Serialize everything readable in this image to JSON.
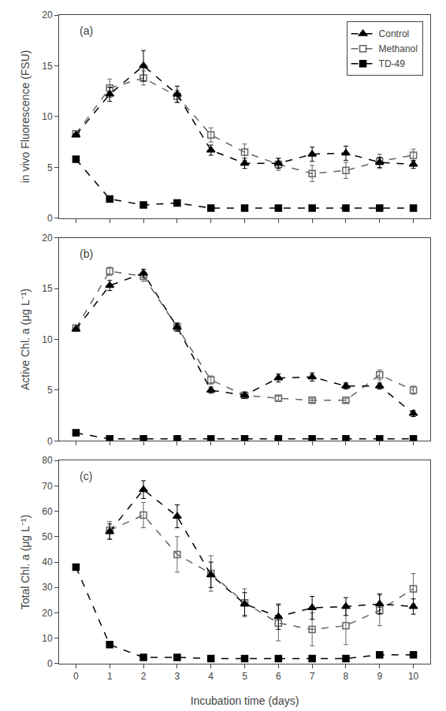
{
  "chart_data": [
    {
      "type": "line",
      "title": "(a)",
      "ylabel": "in vivo Fluorescence (FSU)",
      "x": [
        0,
        1,
        2,
        3,
        4,
        5,
        6,
        7,
        8,
        9,
        10
      ],
      "xlim": [
        -0.5,
        10.5
      ],
      "xticks": [
        0,
        1,
        2,
        3,
        4,
        5,
        6,
        7,
        8,
        9,
        10
      ],
      "ylim": [
        0,
        20
      ],
      "yticks": [
        0,
        5,
        10,
        15,
        20
      ],
      "grid": false,
      "legend": "upper right",
      "tick_labels": "y",
      "series": [
        {
          "name": "Control",
          "color": "black",
          "marker": "triangle",
          "line_style": "dashed",
          "values": [
            8.2,
            12.2,
            15.0,
            12.2,
            6.7,
            5.4,
            5.4,
            6.3,
            6.4,
            5.5,
            5.3
          ],
          "errors": [
            0.0,
            0.7,
            1.5,
            0.8,
            0.5,
            0.5,
            0.5,
            0.7,
            0.7,
            0.5,
            0.4
          ]
        },
        {
          "name": "Methanol",
          "color": "#666666",
          "marker": "square-open",
          "line_style": "dashed",
          "values": [
            8.3,
            12.8,
            13.8,
            12.0,
            8.2,
            6.5,
            5.3,
            4.4,
            4.7,
            5.6,
            6.2
          ],
          "errors": [
            0.0,
            0.9,
            0.7,
            0.6,
            0.7,
            0.8,
            0.6,
            0.8,
            0.8,
            0.7,
            0.6
          ]
        },
        {
          "name": "TD-49",
          "color": "black",
          "marker": "square",
          "line_style": "dashed",
          "values": [
            5.8,
            1.9,
            1.3,
            1.5,
            1.0,
            1.0,
            1.0,
            1.0,
            1.0,
            1.0,
            1.0
          ],
          "errors": [
            0.0,
            0.2,
            0.1,
            0.1,
            0.1,
            0.1,
            0.1,
            0.1,
            0.1,
            0.1,
            0.1
          ]
        }
      ]
    },
    {
      "type": "line",
      "title": "(b)",
      "ylabel": "Active Chl. a (μg L⁻¹)",
      "x": [
        0,
        1,
        2,
        3,
        4,
        5,
        6,
        7,
        8,
        9,
        10
      ],
      "xlim": [
        -0.5,
        10.5
      ],
      "xticks": [
        0,
        1,
        2,
        3,
        4,
        5,
        6,
        7,
        8,
        9,
        10
      ],
      "ylim": [
        0,
        20
      ],
      "yticks": [
        0,
        5,
        10,
        15,
        20
      ],
      "grid": false,
      "tick_labels": "y",
      "series": [
        {
          "name": "Control",
          "color": "black",
          "marker": "triangle",
          "line_style": "dashed",
          "values": [
            11.0,
            15.3,
            16.5,
            11.2,
            5.0,
            4.5,
            6.2,
            6.3,
            5.4,
            5.4,
            2.7
          ],
          "errors": [
            0.0,
            0.5,
            0.4,
            0.4,
            0.3,
            0.3,
            0.4,
            0.4,
            0.3,
            0.3,
            0.3
          ]
        },
        {
          "name": "Methanol",
          "color": "#666666",
          "marker": "square-open",
          "line_style": "dashed",
          "values": [
            11.1,
            16.7,
            16.2,
            11.2,
            6.0,
            4.5,
            4.2,
            4.0,
            4.0,
            6.5,
            5.0
          ],
          "errors": [
            0.0,
            0.4,
            0.5,
            0.4,
            0.4,
            0.3,
            0.2,
            0.2,
            0.2,
            0.5,
            0.4
          ]
        },
        {
          "name": "TD-49",
          "color": "black",
          "marker": "square",
          "line_style": "dashed",
          "values": [
            0.8,
            0.2,
            0.2,
            0.2,
            0.2,
            0.2,
            0.2,
            0.2,
            0.2,
            0.2,
            0.2
          ],
          "errors": [
            0.1,
            0.05,
            0.05,
            0.05,
            0.05,
            0.05,
            0.05,
            0.05,
            0.05,
            0.05,
            0.05
          ]
        }
      ]
    },
    {
      "type": "line",
      "title": "(c)",
      "ylabel": "Total Chl. a (μg L⁻¹)",
      "xlabel": "Incubation time (days)",
      "x": [
        0,
        1,
        2,
        3,
        4,
        5,
        6,
        7,
        8,
        9,
        10
      ],
      "xlim": [
        -0.5,
        10.5
      ],
      "xticks": [
        0,
        1,
        2,
        3,
        4,
        5,
        6,
        7,
        8,
        9,
        10
      ],
      "ylim": [
        0,
        80
      ],
      "yticks": [
        0,
        10,
        20,
        30,
        40,
        50,
        60,
        70,
        80
      ],
      "grid": false,
      "series": [
        {
          "name": "Control",
          "color": "black",
          "marker": "triangle",
          "line_style": "dashed",
          "values": [
            null,
            52.0,
            68.5,
            58.0,
            35.0,
            23.5,
            18.5,
            22.0,
            22.5,
            23.5,
            22.5
          ],
          "errors": [
            null,
            3.0,
            3.5,
            4.5,
            5.0,
            4.5,
            5.0,
            4.5,
            3.5,
            4.0,
            3.0
          ]
        },
        {
          "name": "Methanol",
          "color": "#666666",
          "marker": "square-open",
          "line_style": "dashed",
          "values": [
            null,
            52.5,
            58.5,
            43.0,
            35.5,
            24.0,
            16.0,
            13.5,
            15.0,
            21.0,
            29.5
          ],
          "errors": [
            null,
            3.5,
            5.0,
            7.0,
            7.0,
            5.5,
            7.0,
            6.5,
            7.5,
            6.0,
            6.0
          ]
        },
        {
          "name": "TD-49",
          "color": "black",
          "marker": "square",
          "line_style": "dashed",
          "values": [
            38.0,
            7.5,
            2.5,
            2.5,
            2.0,
            2.0,
            2.0,
            2.0,
            2.0,
            3.5,
            3.5
          ],
          "errors": [
            1.0,
            0.5,
            0.3,
            0.3,
            0.2,
            0.2,
            0.2,
            0.2,
            0.2,
            0.5,
            0.5
          ]
        }
      ]
    }
  ]
}
